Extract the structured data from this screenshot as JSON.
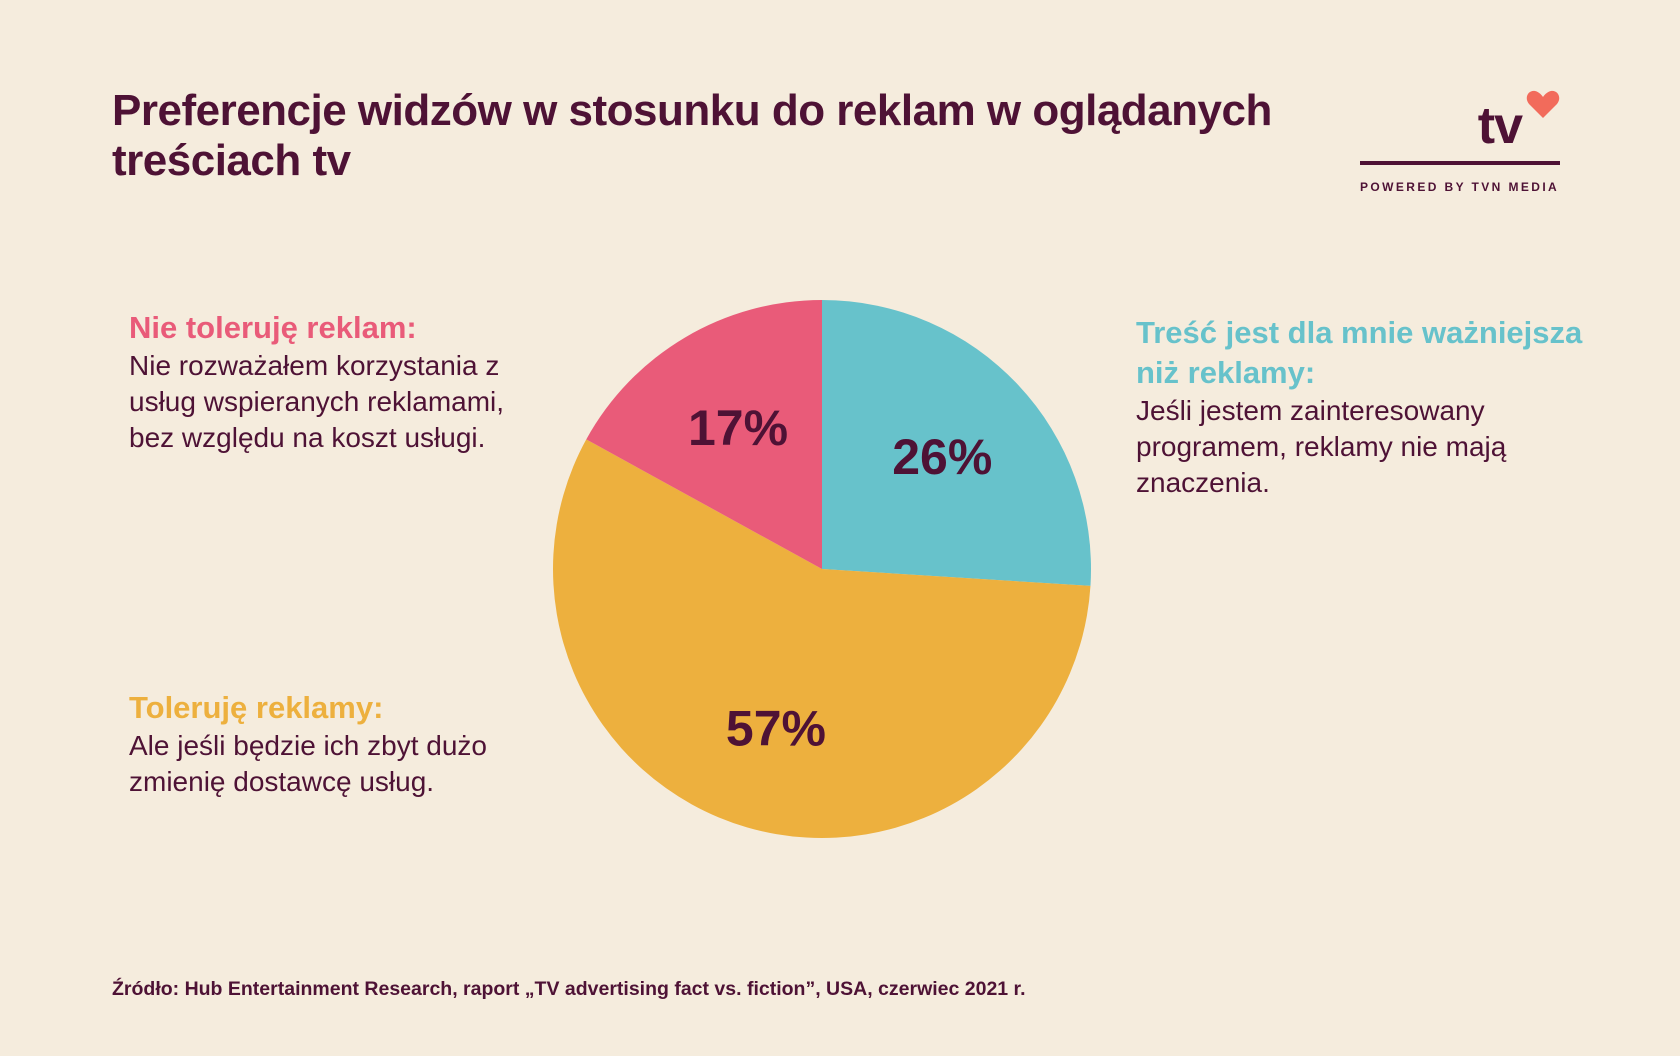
{
  "title": "Preferencje widzów w stosunku do reklam w oglądanych treściach tv",
  "logo": {
    "text": "tv",
    "caption": "POWERED BY TVN MEDIA",
    "icon": "heart-icon",
    "heart_color": "#f26b5b"
  },
  "colors": {
    "text": "#4e1235",
    "background": "#f5ecdd",
    "teal": "#67c2cb",
    "yellow": "#edb03e",
    "red": "#e95b79"
  },
  "chart_data": {
    "type": "pie",
    "slices": [
      {
        "value": 26,
        "label": "26%",
        "color": "#67c2cb",
        "heading": "Treść jest dla mnie ważniejsza niż reklamy:",
        "description": "Jeśli jestem zainteresowany programem, reklamy nie mają znaczenia."
      },
      {
        "value": 57,
        "label": "57%",
        "color": "#edb03e",
        "heading": "Toleruję reklamy:",
        "description": "Ale jeśli będzie ich zbyt dużo zmienię dostawcę usług."
      },
      {
        "value": 17,
        "label": "17%",
        "color": "#e95b79",
        "heading": "Nie toleruję reklam:",
        "description": "Nie rozważałem korzystania z usług wspieranych reklamami, bez względu na koszt usługi."
      }
    ],
    "start_angle": "12 o'clock",
    "direction": "clockwise"
  },
  "source": "Źródło: Hub Entertainment Research, raport „TV advertising fact vs. fiction”, USA, czerwiec 2021 r."
}
